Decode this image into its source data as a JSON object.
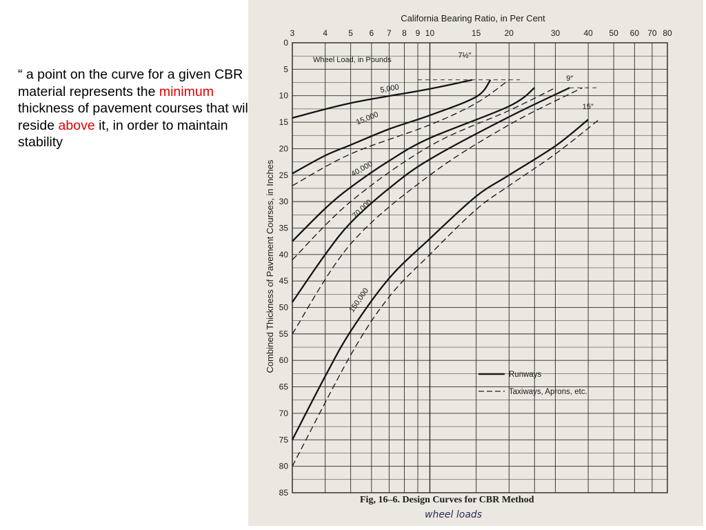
{
  "slide": {
    "parts": [
      "“ a point on the curve for a given CBR material represents the ",
      "minimum",
      " thickness of pavement courses that will reside ",
      "above",
      " it, in order to maintain stability"
    ],
    "highlight_color": "#e00000"
  },
  "chart_data": {
    "type": "line",
    "title": "California Bearing Ratio, in Per Cent",
    "xlabel": "California Bearing Ratio, in Per Cent",
    "ylabel": "Combined Thickness of Pavement Courses, in Inches",
    "x_scale": "log",
    "y_inverted": true,
    "xlim": [
      3,
      80
    ],
    "ylim": [
      0,
      85
    ],
    "x_ticks": [
      3,
      4,
      5,
      6,
      7,
      8,
      9,
      10,
      15,
      20,
      30,
      40,
      50,
      60,
      70,
      80
    ],
    "y_ticks": [
      0,
      5,
      10,
      15,
      20,
      25,
      30,
      35,
      40,
      45,
      50,
      55,
      60,
      65,
      70,
      75,
      80,
      85
    ],
    "grid": true,
    "group_label": "Wheel Load, in Pounds",
    "load_labels": [
      "5,000",
      "15,000",
      "40,000",
      "70,000",
      "150,000"
    ],
    "tire_labels": [
      "7½″",
      "9″",
      "15″"
    ],
    "legend": {
      "solid": "Runways",
      "dashed": "Taxiways, Aprons, etc."
    },
    "series": [
      {
        "name": "5,000",
        "style": "solid",
        "x": [
          3,
          5,
          10,
          14.5
        ],
        "y": [
          14.2,
          11.4,
          8.7,
          7.0
        ]
      },
      {
        "name": "15,000",
        "style": "solid",
        "x": [
          3,
          4,
          5,
          7,
          10,
          15,
          17
        ],
        "y": [
          24.7,
          21.3,
          19.3,
          16.3,
          13.7,
          10.2,
          7.0
        ]
      },
      {
        "name": "15,000",
        "style": "dashed",
        "x": [
          3,
          5,
          10,
          15,
          20
        ],
        "y": [
          27.0,
          21.0,
          15.5,
          11.4,
          7.0
        ]
      },
      {
        "name": "40,000",
        "style": "solid",
        "x": [
          3,
          4,
          5,
          7,
          10,
          20,
          25
        ],
        "y": [
          37.5,
          31.3,
          27.3,
          22.3,
          18.0,
          12.0,
          8.5
        ]
      },
      {
        "name": "40,000",
        "style": "dashed",
        "x": [
          3,
          5,
          10,
          20,
          30
        ],
        "y": [
          41.0,
          30.0,
          19.5,
          12.8,
          8.5
        ]
      },
      {
        "name": "70,000",
        "style": "solid",
        "x": [
          3,
          4,
          5,
          7,
          10,
          20,
          34
        ],
        "y": [
          49.0,
          40.0,
          34.0,
          27.5,
          22.0,
          14.0,
          8.5
        ]
      },
      {
        "name": "70,000",
        "style": "dashed",
        "x": [
          3,
          5,
          10,
          20,
          38
        ],
        "y": [
          55.0,
          38.0,
          25.0,
          15.5,
          8.5
        ]
      },
      {
        "name": "150,000",
        "style": "solid",
        "x": [
          3,
          4,
          5,
          7,
          10,
          15,
          20,
          30,
          40
        ],
        "y": [
          75.0,
          63.0,
          54.5,
          44.5,
          37.0,
          29.0,
          25.0,
          19.5,
          14.5
        ]
      },
      {
        "name": "150,000",
        "style": "dashed",
        "x": [
          3,
          5,
          7,
          10,
          15,
          20,
          30,
          44
        ],
        "y": [
          80.0,
          59.0,
          48.0,
          40.0,
          31.5,
          27.0,
          21.0,
          14.5
        ]
      }
    ],
    "caption": "Fig, 16–6.   Design Curves for CBR Method",
    "annotation": "wheel loads"
  }
}
